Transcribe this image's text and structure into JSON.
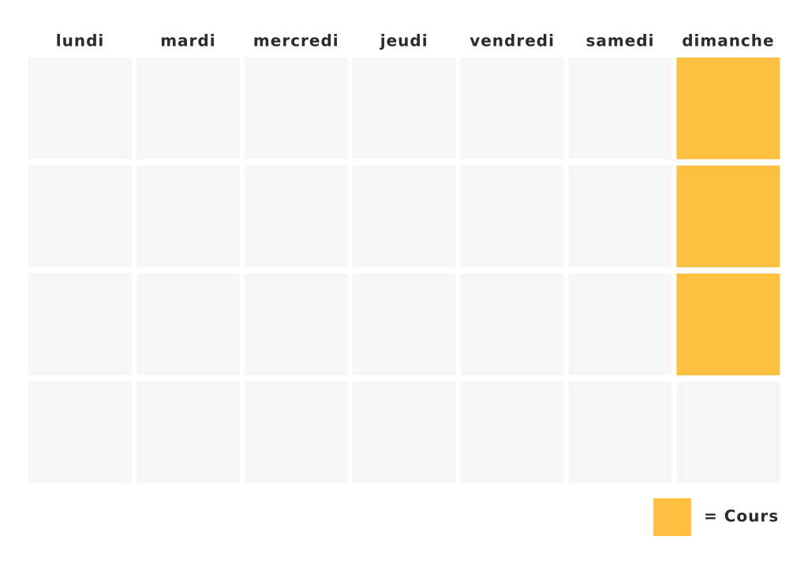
{
  "days": [
    "lundi",
    "mardi",
    "mercredi",
    "jeudi",
    "vendredi",
    "samedi",
    "dimanche"
  ],
  "weeks": [
    [
      false,
      false,
      false,
      false,
      false,
      false,
      true
    ],
    [
      false,
      false,
      false,
      false,
      false,
      false,
      true
    ],
    [
      false,
      false,
      false,
      false,
      false,
      false,
      true
    ],
    [
      false,
      false,
      false,
      false,
      false,
      false,
      false
    ]
  ],
  "empty_color": "#f7f6f4",
  "legend": {
    "color": "#fdc040",
    "label": "= Cours"
  }
}
